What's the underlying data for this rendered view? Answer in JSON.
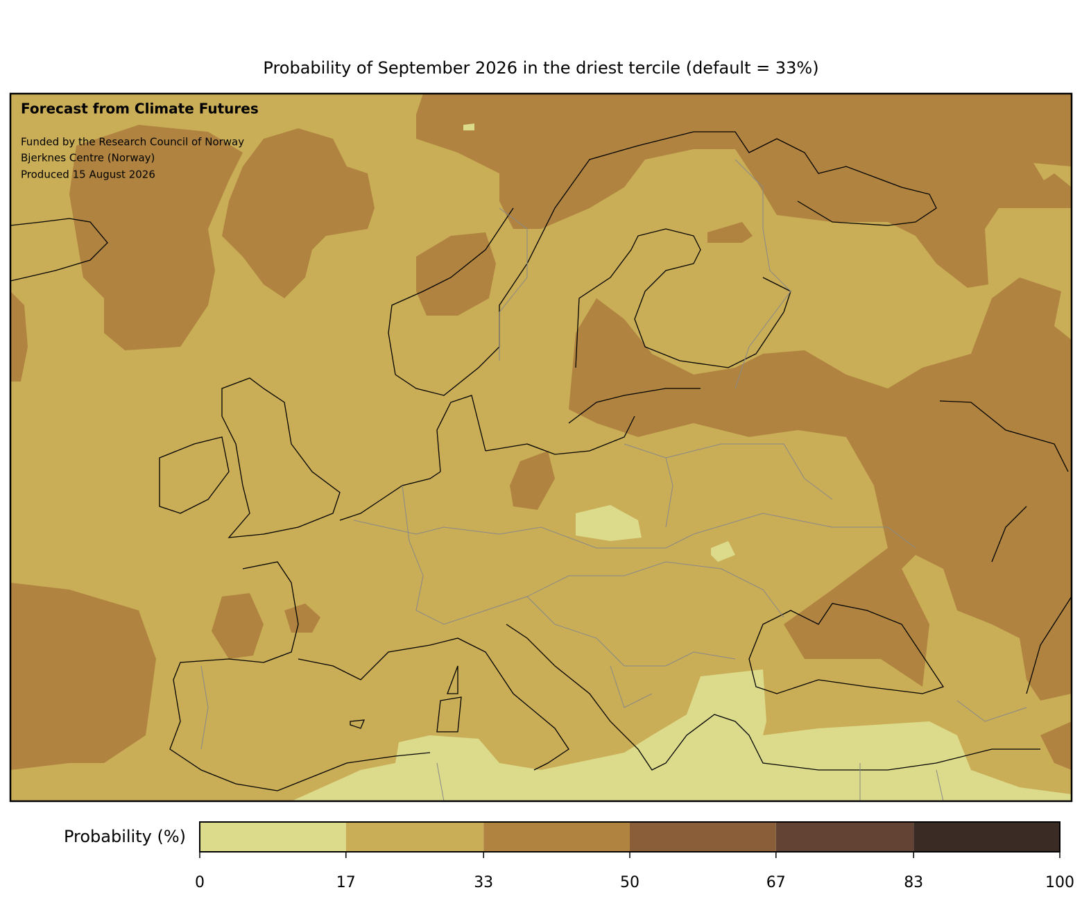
{
  "title": "Probability of September 2026 in the driest tercile (default = 33%)",
  "annotations": {
    "heading": "Forecast from Climate Futures",
    "lines": [
      "Funded by the Research Council of Norway",
      "Bjerknes Centre (Norway)",
      "Produced 15 August 2026"
    ]
  },
  "colorbar": {
    "label": "Probability (%)",
    "bins": [
      0,
      17,
      33,
      50,
      67,
      83,
      100
    ],
    "colors": [
      "#dcdb8b",
      "#c9ad57",
      "#b08440",
      "#8b5e3a",
      "#634434",
      "#3a2b25"
    ],
    "range": [
      0,
      100
    ]
  }
}
